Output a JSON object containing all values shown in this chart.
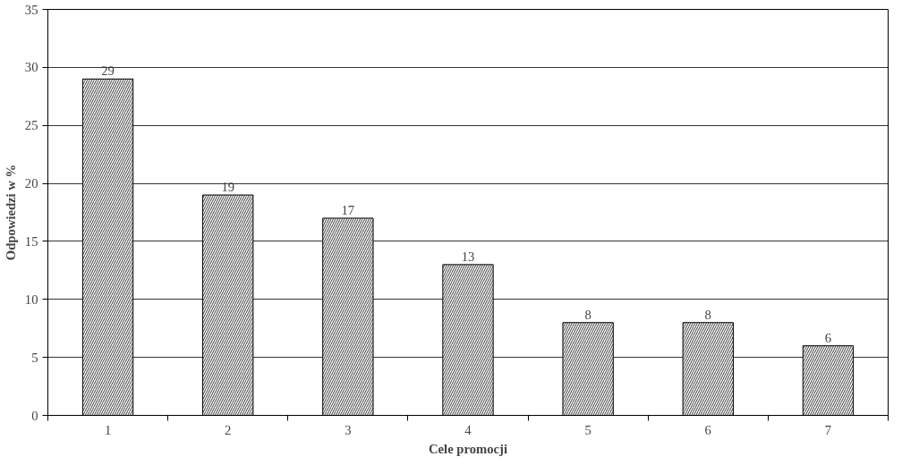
{
  "chart_data": {
    "type": "bar",
    "xlabel": "Cele promocji",
    "ylabel": "Odpowiedzi w %",
    "categories": [
      "1",
      "2",
      "3",
      "4",
      "5",
      "6",
      "7"
    ],
    "values": [
      29,
      19,
      17,
      13,
      8,
      8,
      6
    ],
    "color": "#000000",
    "ylim": [
      0,
      35
    ],
    "yticks": [
      0,
      5,
      10,
      15,
      20,
      25,
      30,
      35
    ],
    "grid": "y",
    "data_labels": true
  }
}
